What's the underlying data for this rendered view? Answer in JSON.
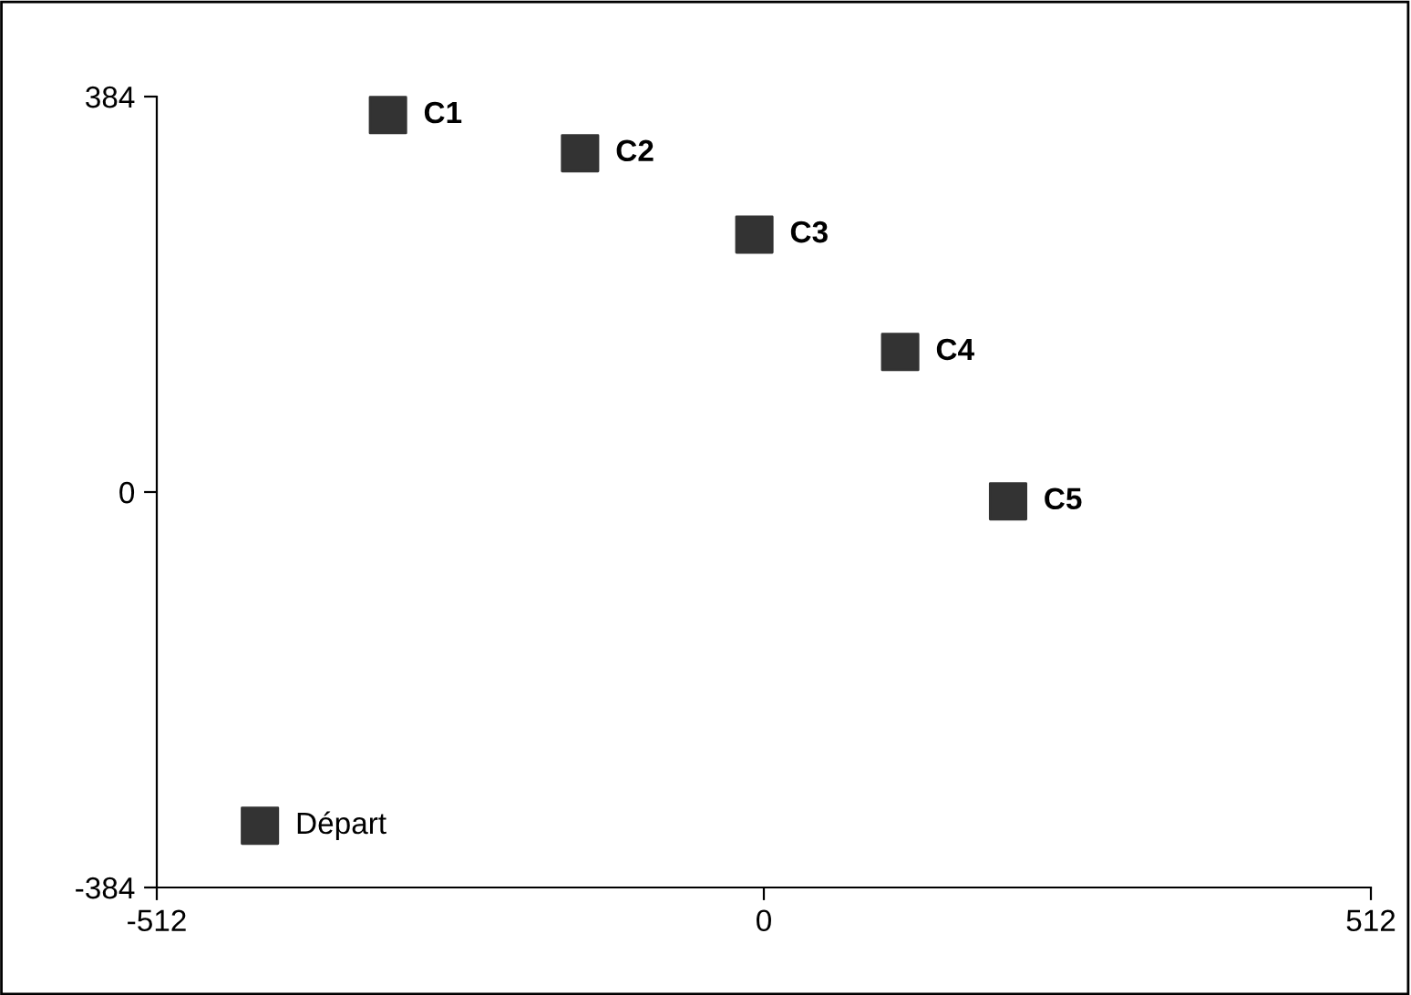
{
  "chart_data": {
    "type": "scatter",
    "series": [
      {
        "color": "#333333",
        "x": [
          -317,
          -155,
          -8,
          115,
          206,
          -425
        ],
        "values": [
          366,
          329,
          250,
          136,
          -9,
          -324
        ]
      }
    ],
    "marker": "square",
    "annotations": [
      {
        "text": "C1",
        "x": -317,
        "y": 366
      },
      {
        "text": "C2",
        "x": -155,
        "y": 329
      },
      {
        "text": "C3",
        "x": -8,
        "y": 250
      },
      {
        "text": "C4",
        "x": 115,
        "y": 136
      },
      {
        "text": "C5",
        "x": 206,
        "y": -9
      },
      {
        "text": "Départ",
        "x": -425,
        "y": -324
      }
    ],
    "xlim": [
      -512,
      512
    ],
    "xticks": [
      -512,
      0,
      512
    ],
    "ylim": [
      -384,
      384
    ],
    "yticks": [
      -384,
      0,
      384
    ],
    "grid": false,
    "legend": false
  }
}
